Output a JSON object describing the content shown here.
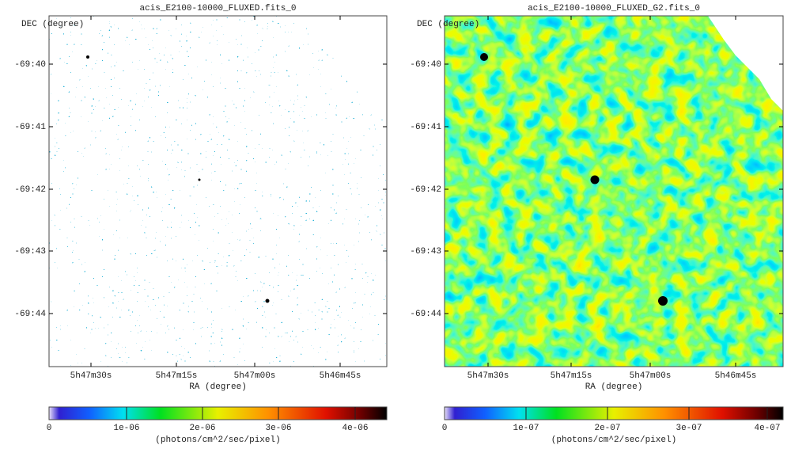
{
  "panels": [
    {
      "title": "acis_E2100-10000_FLUXED.fits_0",
      "y_axis_label": "DEC (degree)",
      "x_axis_label": "RA (degree)",
      "y_ticks": [
        "-69:40",
        "-69:41",
        "-69:42",
        "-69:43",
        "-69:44"
      ],
      "x_ticks": [
        "5h47m30s",
        "5h47m15s",
        "5h47m00s",
        "5h46m45s"
      ],
      "colorbar": {
        "ticks": [
          "0",
          "1e-06",
          "2e-06",
          "3e-06",
          "4e-06"
        ],
        "label": "(photons/cm^2/sec/pixel)"
      }
    },
    {
      "title": "acis_E2100-10000_FLUXED_G2.fits_0",
      "y_axis_label": "DEC (degree)",
      "x_axis_label": "RA (degree)",
      "y_ticks": [
        "-69:40",
        "-69:41",
        "-69:42",
        "-69:43",
        "-69:44"
      ],
      "x_ticks": [
        "5h47m30s",
        "5h47m15s",
        "5h47m00s",
        "5h46m45s"
      ],
      "colorbar": {
        "ticks": [
          "0",
          "1e-07",
          "2e-07",
          "3e-07",
          "4e-07"
        ],
        "label": "(photons/cm^2/sec/pixel)"
      }
    }
  ]
}
